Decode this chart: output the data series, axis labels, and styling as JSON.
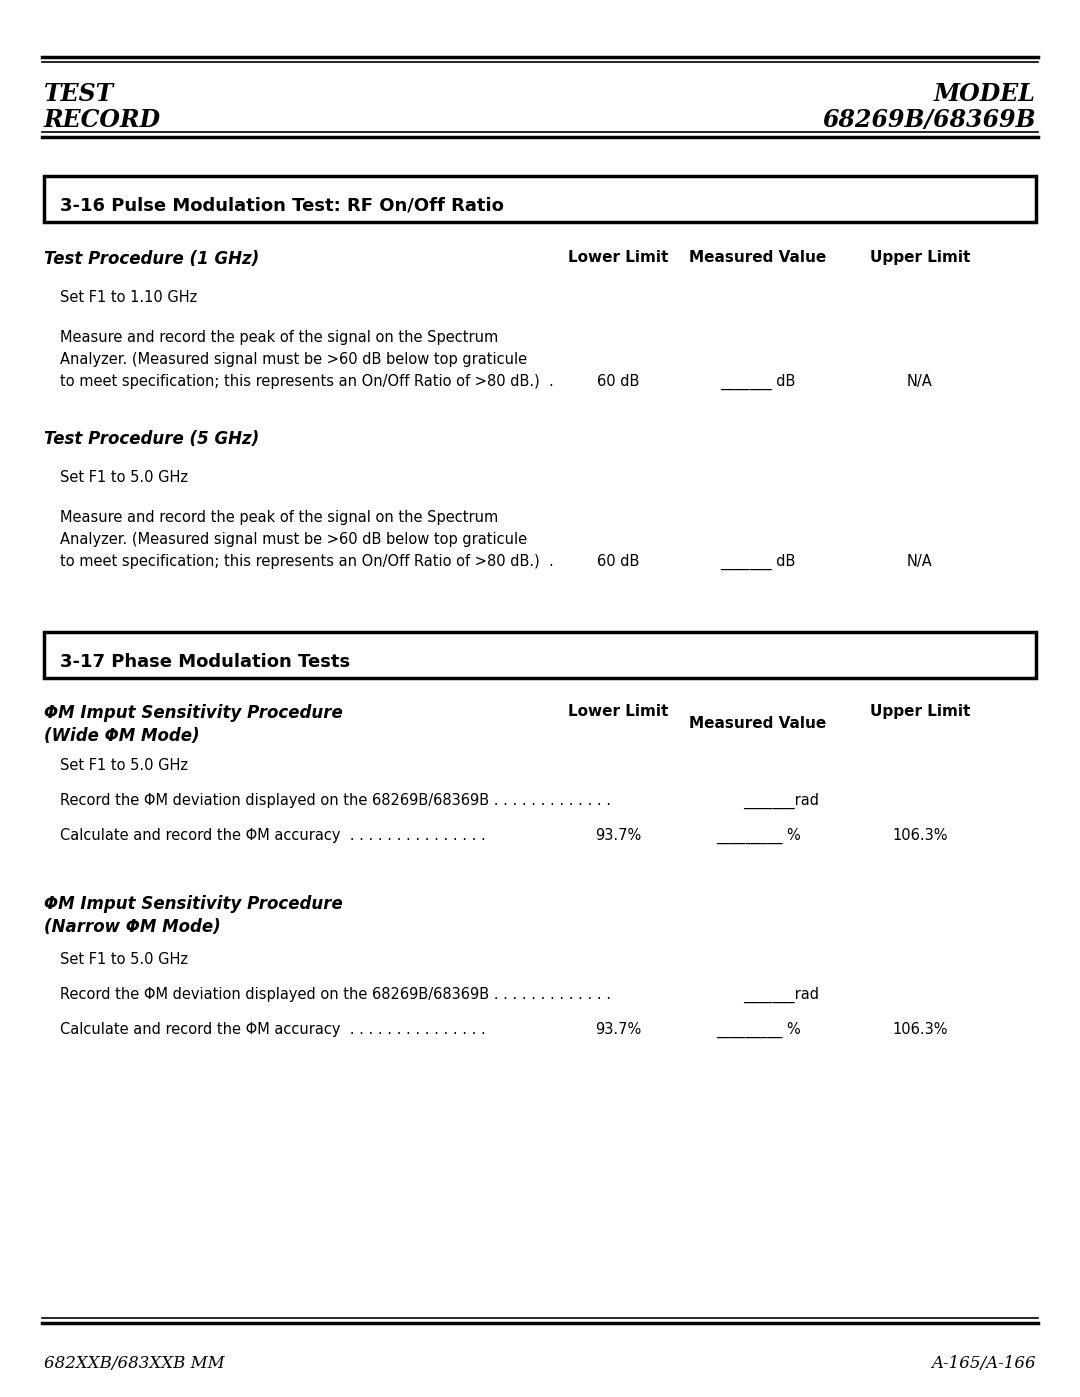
{
  "bg_color": "#ffffff",
  "header_left_line1": "TEST",
  "header_left_line2": "RECORD",
  "header_right_line1": "MODEL",
  "header_right_line2": "68269B/68369B",
  "footer_left": "682XXB/683XXB MM",
  "footer_right": "A-165/A-166",
  "section1_title": "3-16 Pulse Modulation Test: RF On/Off Ratio",
  "proc1_heading": "Test Procedure (1 GHz)",
  "col1": "Lower Limit",
  "col2": "Measured Value",
  "col3": "Upper Limit",
  "proc1_step1": "Set F1 to 1.10 GHz",
  "proc1_step2_line1": "Measure and record the peak of the signal on the Spectrum",
  "proc1_step2_line2": "Analyzer. (Measured signal must be >60 dB below top graticule",
  "proc1_step2_line3": "to meet specification; this represents an On/Off Ratio of >80 dB.)  .",
  "proc1_lower": "60 dB",
  "proc1_measured": "_______ dB",
  "proc1_upper": "N/A",
  "proc2_heading": "Test Procedure (5 GHz)",
  "proc2_step1": "Set F1 to 5.0 GHz",
  "proc2_step2_line1": "Measure and record the peak of the signal on the Spectrum",
  "proc2_step2_line2": "Analyzer. (Measured signal must be >60 dB below top graticule",
  "proc2_step2_line3": "to meet specification; this represents an On/Off Ratio of >80 dB.)  .",
  "proc2_lower": "60 dB",
  "proc2_measured": "_______ dB",
  "proc2_upper": "N/A",
  "section2_title": "3-17 Phase Modulation Tests",
  "phi_wide_heading_line1": "ΦM Imput Sensitivity Procedure",
  "phi_wide_heading_line2": "(Wide ΦM Mode)",
  "phi_wide_step1": "Set F1 to 5.0 GHz",
  "phi_wide_step2": "Record the ΦM deviation displayed on the 68269B/68369B . . . . . . . . . . . . .",
  "phi_wide_step2_val": "_______rad",
  "phi_wide_step3": "Calculate and record the ΦM accuracy  . . . . . . . . . . . . . . .",
  "phi_wide_lower": "93.7%",
  "phi_wide_measured": "_________ %",
  "phi_wide_upper": "106.3%",
  "phi_narrow_heading_line1": "ΦM Imput Sensitivity Procedure",
  "phi_narrow_heading_line2": "(Narrow ΦM Mode)",
  "phi_narrow_step1": "Set F1 to 5.0 GHz",
  "phi_narrow_step2": "Record the ΦM deviation displayed on the 68269B/68369B . . . . . . . . . . . . .",
  "phi_narrow_step2_val": "_______rad",
  "phi_narrow_step3": "Calculate and record the ΦM accuracy  . . . . . . . . . . . . . . .",
  "phi_narrow_lower": "93.7%",
  "phi_narrow_measured": "_________ %",
  "phi_narrow_upper": "106.3%"
}
